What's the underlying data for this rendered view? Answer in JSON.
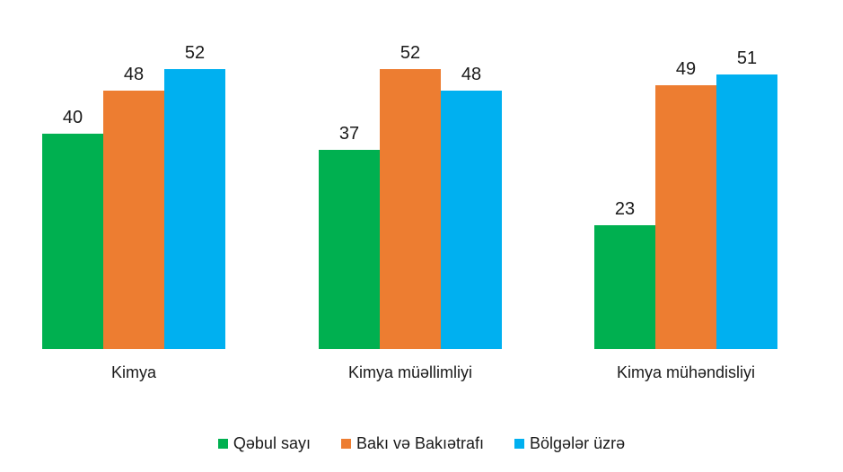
{
  "chart_data": {
    "type": "bar",
    "categories": [
      "Kimya",
      "Kimya müəllimliyi",
      "Kimya mühəndisliyi"
    ],
    "series": [
      {
        "name": "Qəbul sayı",
        "values": [
          40,
          37,
          23
        ],
        "color": "#00b050"
      },
      {
        "name": "Bakı və Bakıətrafı",
        "values": [
          48,
          52,
          49
        ],
        "color": "#ed7d31"
      },
      {
        "name": "Bölgələr üzrə",
        "values": [
          52,
          48,
          51
        ],
        "color": "#00b0f0"
      }
    ],
    "ylim": [
      0,
      60
    ],
    "grid": false,
    "legend": "bottom"
  }
}
